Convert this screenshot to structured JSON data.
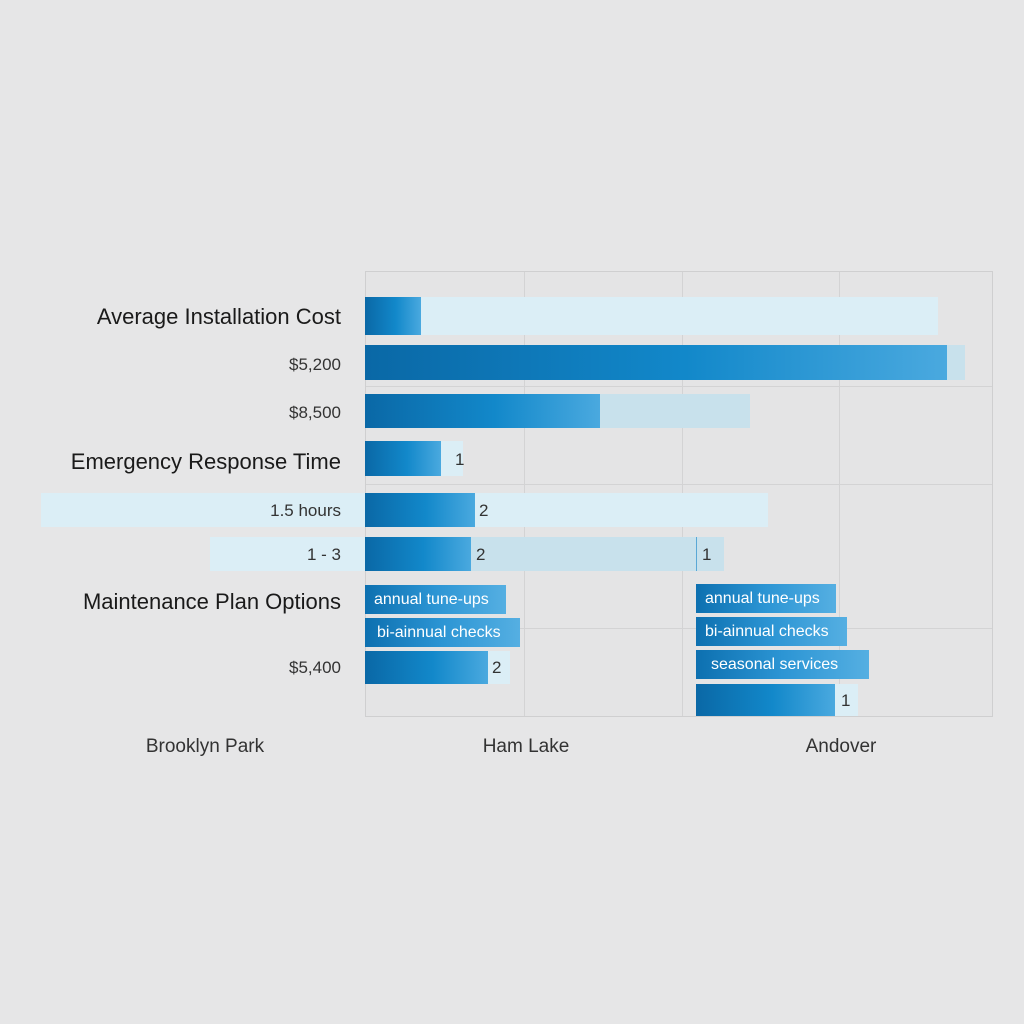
{
  "chart_data": {
    "type": "bar",
    "orientation": "horizontal",
    "categories": [
      "Brooklyn Park",
      "Ham Lake",
      "Andover"
    ],
    "sections": [
      {
        "title": "Average Installation Cost",
        "row_labels": [
          "$5,200",
          "$8,500"
        ]
      },
      {
        "title": "Emergency Response Time",
        "row_labels": [
          "1.5 hours",
          "1 - 3"
        ],
        "value_labels": [
          "1",
          "2",
          "2",
          "1"
        ]
      },
      {
        "title": "Maintenance Plan Options",
        "row_labels": [
          "$5,400"
        ],
        "ham_lake_options": [
          "annual tune-ups",
          "bi-ainnual checks"
        ],
        "andover_options": [
          "annual tune-ups",
          "bi-ainnual checks",
          "seasonal services"
        ],
        "value_labels": [
          "2",
          "1"
        ]
      }
    ],
    "grid": true,
    "colors": {
      "bar": "#1288ca",
      "bar_dark": "#0a68a6",
      "bar_light": "#dbeef6",
      "background": "#e6e6e7"
    }
  }
}
